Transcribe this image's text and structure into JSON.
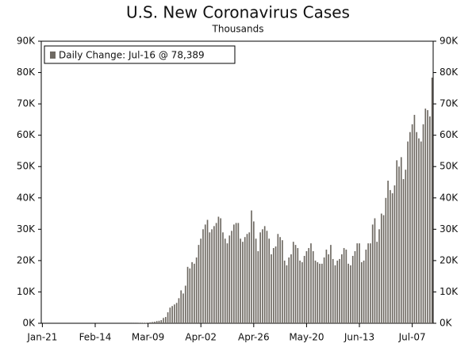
{
  "chart_data": {
    "type": "bar",
    "title": "U.S. New Coronavirus Cases",
    "subtitle": "Thousands",
    "categories": [
      "Jan-21",
      null,
      null,
      null,
      null,
      null,
      null,
      null,
      null,
      null,
      null,
      null,
      null,
      null,
      null,
      null,
      null,
      null,
      null,
      null,
      null,
      null,
      null,
      null,
      "Feb-14",
      null,
      null,
      null,
      null,
      null,
      null,
      null,
      null,
      null,
      null,
      null,
      null,
      null,
      null,
      null,
      null,
      null,
      null,
      null,
      null,
      null,
      null,
      null,
      "Mar-09",
      null,
      null,
      null,
      null,
      null,
      null,
      null,
      null,
      null,
      null,
      null,
      null,
      null,
      null,
      null,
      null,
      null,
      null,
      null,
      null,
      null,
      null,
      null,
      "Apr-02",
      null,
      null,
      null,
      null,
      null,
      null,
      null,
      null,
      null,
      null,
      null,
      null,
      null,
      null,
      null,
      null,
      null,
      null,
      null,
      null,
      null,
      null,
      null,
      "Apr-26",
      null,
      null,
      null,
      null,
      null,
      null,
      null,
      null,
      null,
      null,
      null,
      null,
      null,
      null,
      null,
      null,
      null,
      null,
      null,
      null,
      null,
      null,
      null,
      "May-20",
      null,
      null,
      null,
      null,
      null,
      null,
      null,
      null,
      null,
      null,
      null,
      null,
      null,
      null,
      null,
      null,
      null,
      null,
      null,
      null,
      null,
      null,
      null,
      "Jun-13",
      null,
      null,
      null,
      null,
      null,
      null,
      null,
      null,
      null,
      null,
      null,
      null,
      null,
      null,
      null,
      null,
      null,
      null,
      null,
      null,
      null,
      null,
      null,
      "Jul-07",
      null,
      null,
      null,
      null,
      null,
      null,
      null,
      null,
      null
    ],
    "series": [
      {
        "name": "Daily Change: Jul-16 @ 78,389",
        "color": "#6e6962",
        "values": [
          0,
          0,
          0,
          0,
          0,
          0,
          0,
          0,
          0,
          0,
          0,
          0,
          0,
          0,
          0,
          0,
          0,
          0,
          0,
          0,
          0,
          0,
          0,
          0,
          0,
          0,
          0,
          0,
          0,
          0,
          0,
          0,
          0,
          0,
          0,
          0,
          0,
          0,
          0,
          0,
          10,
          20,
          25,
          30,
          70,
          80,
          120,
          120,
          180,
          300,
          400,
          500,
          700,
          800,
          1000,
          1700,
          2000,
          3500,
          5000,
          5500,
          6000,
          6500,
          8000,
          10500,
          9500,
          12000,
          18000,
          17500,
          19500,
          19000,
          21000,
          25000,
          27000,
          30000,
          31500,
          33000,
          29000,
          30000,
          31000,
          32000,
          34000,
          33500,
          29000,
          27000,
          25500,
          28000,
          29500,
          31500,
          32000,
          32000,
          27000,
          26000,
          27500,
          28500,
          29000,
          36000,
          32500,
          27000,
          23000,
          29000,
          30000,
          31000,
          29500,
          27000,
          22000,
          24000,
          24500,
          28500,
          27500,
          26500,
          20000,
          18500,
          21000,
          22000,
          26000,
          25000,
          24000,
          20000,
          19500,
          21500,
          23000,
          24000,
          25500,
          23000,
          20000,
          19500,
          19000,
          19000,
          21000,
          23500,
          22000,
          25000,
          20500,
          18500,
          20000,
          20500,
          22000,
          24000,
          23500,
          19000,
          18500,
          21500,
          23000,
          25500,
          25500,
          19500,
          20000,
          23500,
          25500,
          25500,
          31500,
          33500,
          26000,
          30000,
          35000,
          34500,
          40000,
          45500,
          42500,
          41500,
          44000,
          52000,
          50000,
          53000,
          46000,
          49000,
          58000,
          61000,
          63500,
          66500,
          61000,
          59000,
          58000,
          63500,
          68500,
          68000,
          66000,
          78389
        ]
      }
    ],
    "ylim": [
      0,
      90000
    ],
    "yticks": [
      {
        "value": 0,
        "label": "0K"
      },
      {
        "value": 10000,
        "label": "10K"
      },
      {
        "value": 20000,
        "label": "20K"
      },
      {
        "value": 30000,
        "label": "30K"
      },
      {
        "value": 40000,
        "label": "40K"
      },
      {
        "value": 50000,
        "label": "50K"
      },
      {
        "value": 60000,
        "label": "60K"
      },
      {
        "value": 70000,
        "label": "70K"
      },
      {
        "value": 80000,
        "label": "80K"
      },
      {
        "value": 90000,
        "label": "90K"
      }
    ],
    "y2lim": [
      0,
      90000
    ],
    "y2ticks": [
      {
        "value": 0,
        "label": "0K"
      },
      {
        "value": 10000,
        "label": "10K"
      },
      {
        "value": 20000,
        "label": "20K"
      },
      {
        "value": 30000,
        "label": "30K"
      },
      {
        "value": 40000,
        "label": "40K"
      },
      {
        "value": 50000,
        "label": "50K"
      },
      {
        "value": 60000,
        "label": "60K"
      },
      {
        "value": 70000,
        "label": "70K"
      },
      {
        "value": 80000,
        "label": "80K"
      },
      {
        "value": 90000,
        "label": "90K"
      }
    ],
    "legend": "top-left",
    "grid": false
  }
}
